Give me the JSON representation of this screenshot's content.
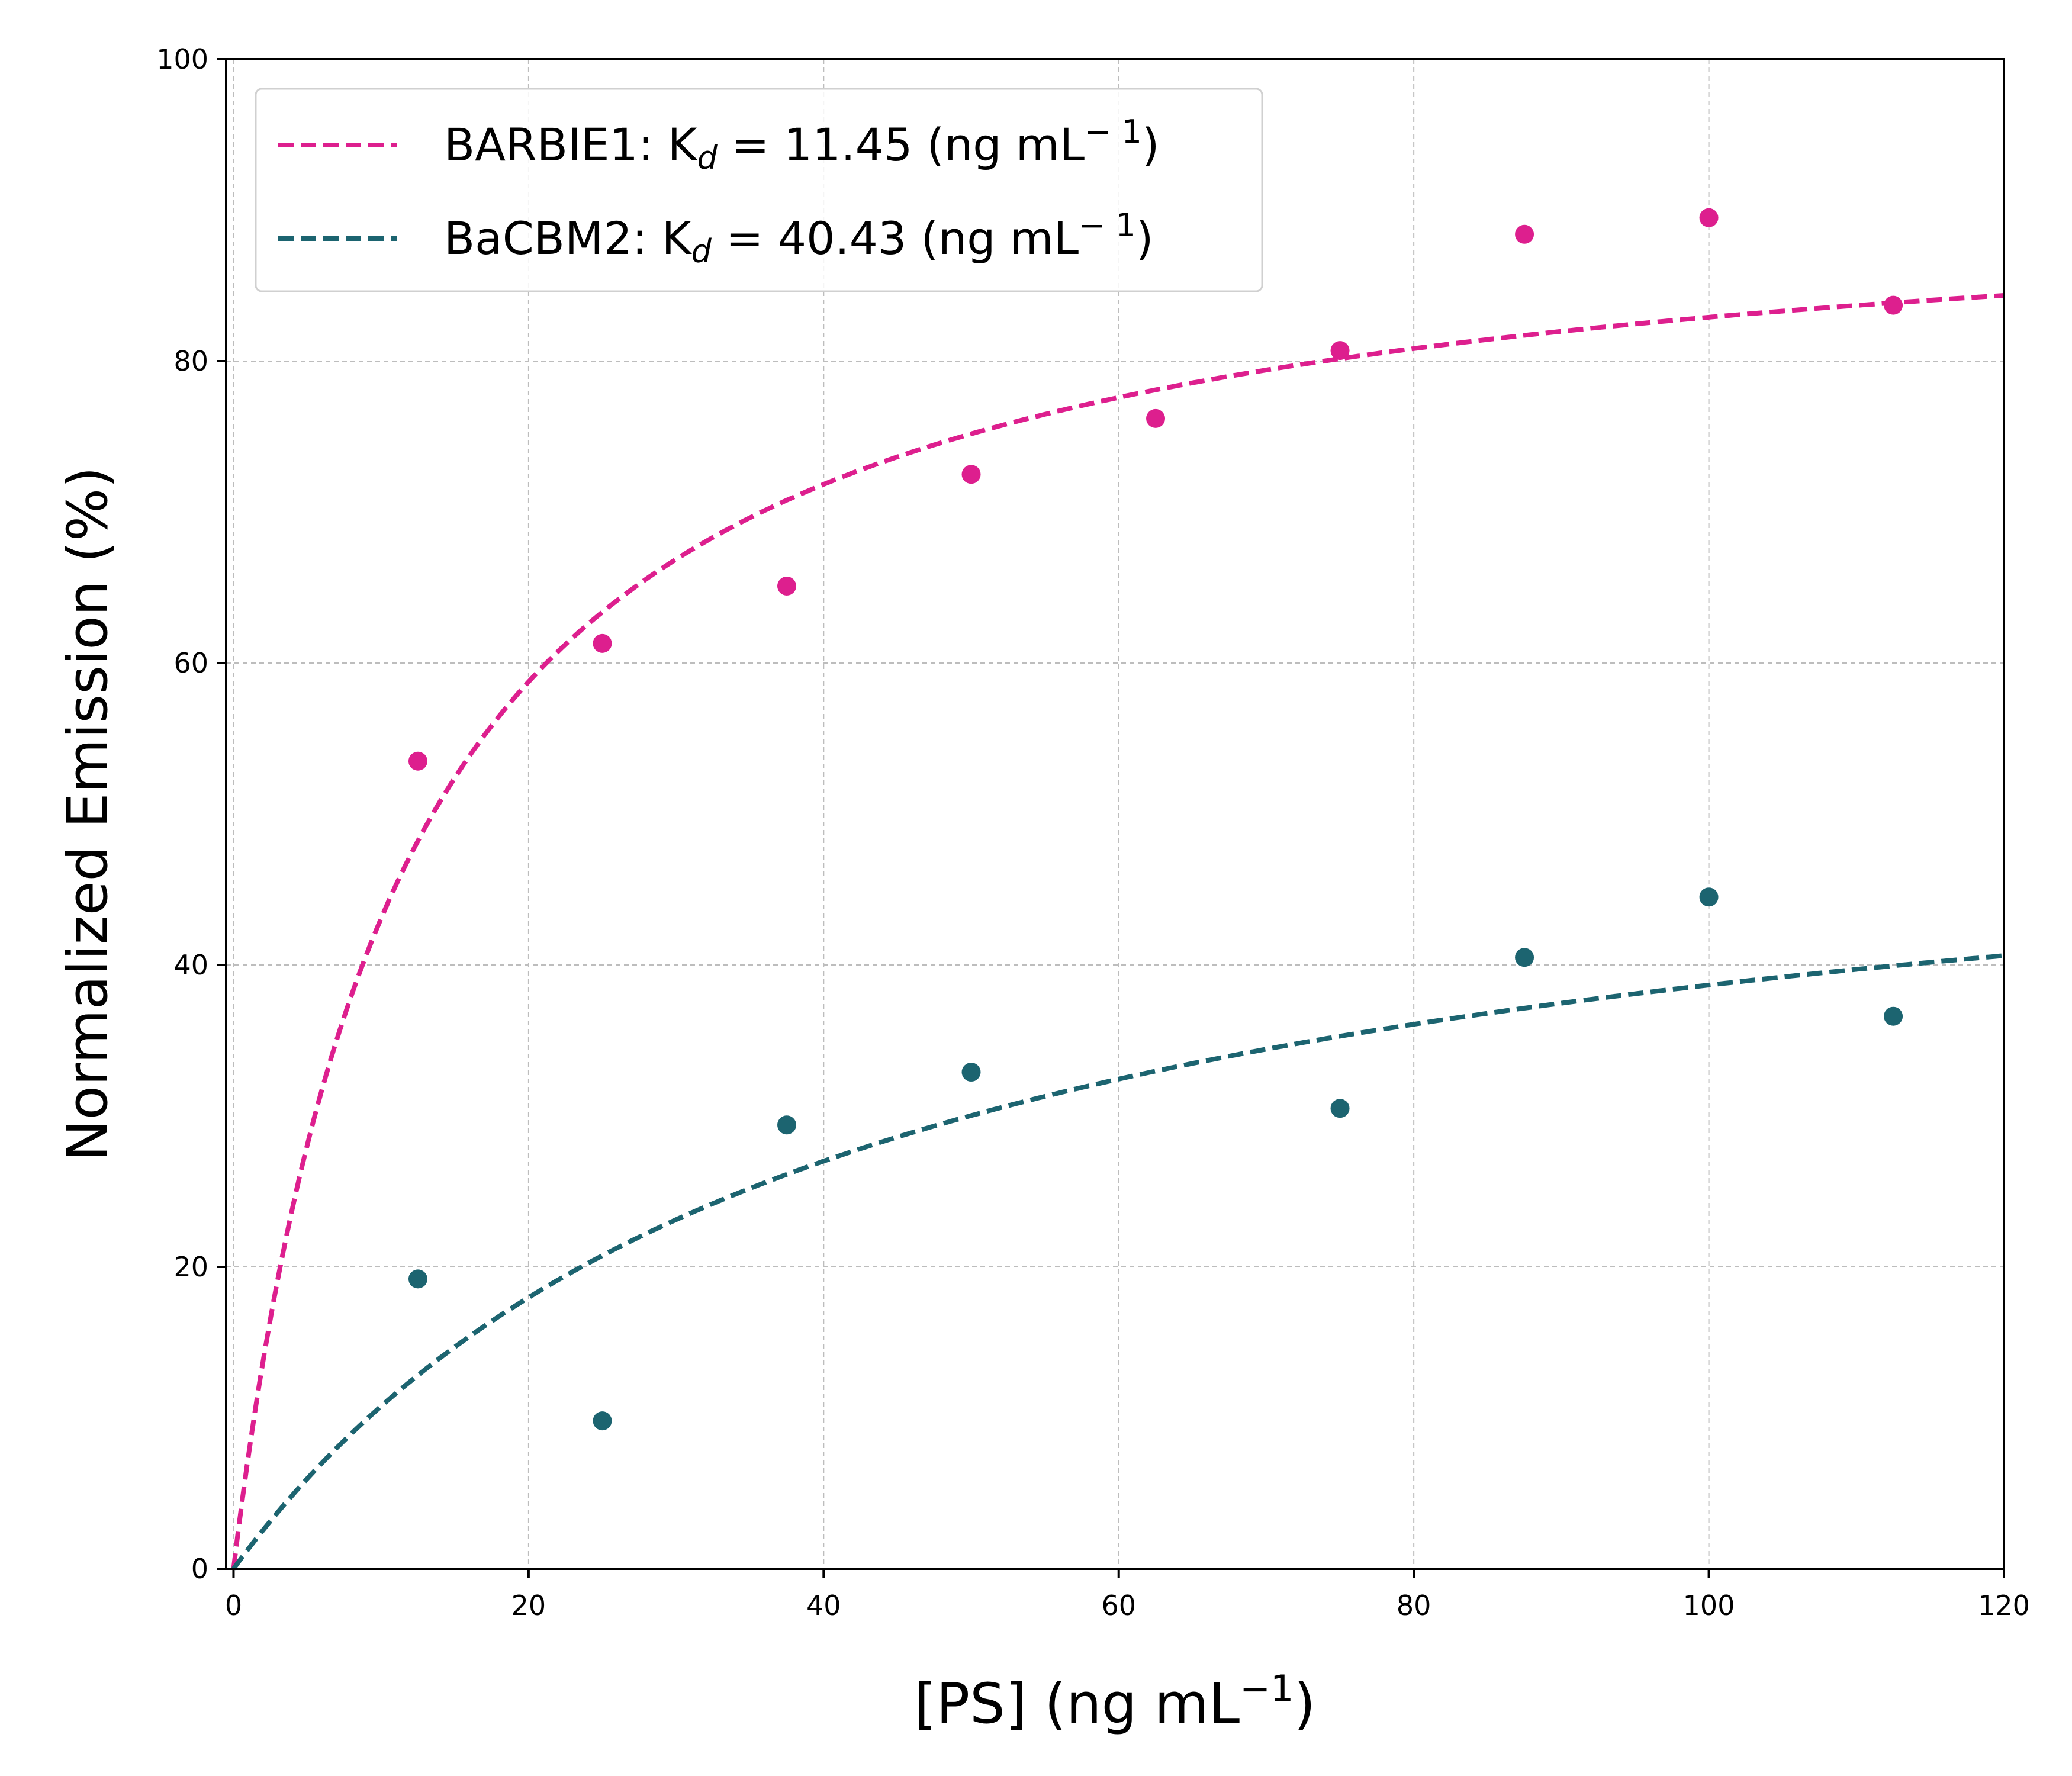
{
  "chart_data": {
    "type": "scatter",
    "xlabel": "[PS] (ng mL",
    "xlabel_sup": "−1",
    "xlabel_close": ")",
    "ylabel": "Normalized Emission (%)",
    "xlim": [
      -0.5,
      120
    ],
    "ylim": [
      0,
      100
    ],
    "xticks": [
      0,
      20,
      40,
      60,
      80,
      100,
      120
    ],
    "yticks": [
      0,
      20,
      40,
      60,
      80,
      100
    ],
    "grid": true,
    "legend_position": "upper-left",
    "series": [
      {
        "name": "BARBIE1: K",
        "name_sub": "d",
        "name_rest": " = 11.45 (ng mL",
        "name_sup": "− 1",
        "name_close": ")",
        "color": "#dd1f8e",
        "fit": {
          "model": "Bmax*x/(Kd+x)",
          "Kd": 11.45,
          "Bmax": 92.4
        },
        "x": [
          12.5,
          25,
          37.5,
          50,
          62.5,
          75,
          87.5,
          100,
          112.5
        ],
        "y": [
          53.5,
          61.3,
          65.1,
          72.5,
          76.2,
          80.7,
          88.4,
          89.5,
          83.7
        ]
      },
      {
        "name": "BaCBM2: K",
        "name_sub": "d",
        "name_rest": " = 40.43 (ng mL",
        "name_sup": "− 1",
        "name_close": ")",
        "color": "#1c6470",
        "fit": {
          "model": "Bmax*x/(Kd+x)",
          "Kd": 40.43,
          "Bmax": 54.3
        },
        "x": [
          12.5,
          25,
          37.5,
          50,
          75,
          87.5,
          100,
          112.5
        ],
        "y": [
          19.2,
          9.8,
          29.4,
          32.9,
          30.5,
          40.5,
          44.5,
          36.6
        ]
      }
    ]
  }
}
